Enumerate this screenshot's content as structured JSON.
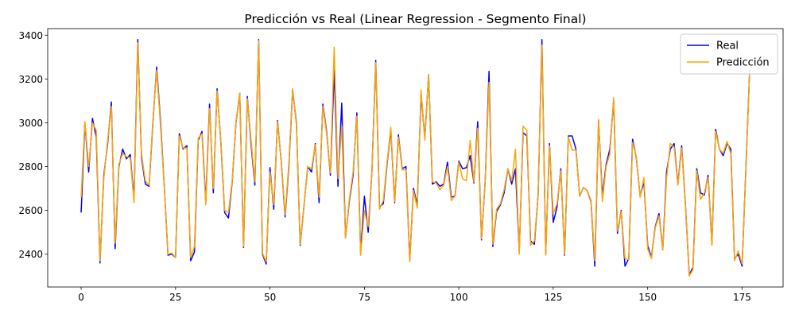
{
  "chart_data": {
    "type": "line",
    "title": "Predicción vs Real (Linear Regression - Segmento Final)",
    "xlabel": "",
    "ylabel": "",
    "xlim": [
      -8.85,
      185.85
    ],
    "ylim": [
      2250,
      3430
    ],
    "xticks": [
      0,
      25,
      50,
      75,
      100,
      125,
      150,
      175
    ],
    "yticks": [
      2400,
      2600,
      2800,
      3000,
      3200,
      3400
    ],
    "legend": "top-right",
    "grid": false,
    "series": [
      {
        "name": "Real",
        "color": "#0000ff",
        "values": [
          2590,
          3000,
          2775,
          3020,
          2935,
          2360,
          2760,
          2900,
          3095,
          2425,
          2800,
          2880,
          2835,
          2855,
          2650,
          3380,
          2840,
          2720,
          2710,
          3000,
          3255,
          3010,
          2715,
          2395,
          2400,
          2385,
          2950,
          2880,
          2895,
          2370,
          2410,
          2920,
          2960,
          2640,
          3085,
          2680,
          3155,
          2910,
          2590,
          2565,
          2730,
          3000,
          3135,
          2430,
          3120,
          2900,
          2715,
          3380,
          2400,
          2355,
          2795,
          2605,
          3010,
          2820,
          2570,
          2800,
          3150,
          3000,
          2440,
          2620,
          2800,
          2775,
          2905,
          2635,
          3085,
          2960,
          2760,
          3240,
          2710,
          3090,
          2475,
          2640,
          2760,
          3045,
          2405,
          2665,
          2500,
          2780,
          3285,
          2615,
          2630,
          2810,
          2970,
          2635,
          2945,
          2790,
          2800,
          2370,
          2700,
          2625,
          3130,
          2930,
          3220,
          2720,
          2730,
          2710,
          2720,
          2820,
          2660,
          2665,
          2825,
          2790,
          2795,
          2850,
          2725,
          3005,
          2465,
          2740,
          3235,
          2435,
          2595,
          2625,
          2680,
          2790,
          2720,
          2790,
          2410,
          2955,
          2940,
          2460,
          2445,
          2670,
          3380,
          2400,
          2905,
          2545,
          2615,
          2790,
          2395,
          2940,
          2940,
          2880,
          2665,
          2705,
          2690,
          2640,
          2345,
          3010,
          2665,
          2810,
          2880,
          3105,
          2495,
          2600,
          2345,
          2380,
          2925,
          2840,
          2665,
          2730,
          2440,
          2385,
          2525,
          2585,
          2420,
          2775,
          2880,
          2905,
          2720,
          2895,
          2625,
          2305,
          2340,
          2790,
          2680,
          2670,
          2760,
          2445,
          2970,
          2880,
          2850,
          2905,
          2880,
          2380,
          2400,
          2345,
          2790,
          3240
        ]
      },
      {
        "name": "Predicción",
        "color": "#ffa500",
        "values": [
          2660,
          3005,
          2800,
          3000,
          2965,
          2370,
          2745,
          2915,
          3075,
          2450,
          2810,
          2860,
          2845,
          2840,
          2635,
          3365,
          2855,
          2735,
          2715,
          3010,
          3240,
          2990,
          2710,
          2400,
          2405,
          2385,
          2940,
          2885,
          2885,
          2385,
          2435,
          2930,
          2950,
          2625,
          3065,
          2700,
          3145,
          2915,
          2600,
          2590,
          2735,
          3005,
          3135,
          2435,
          3110,
          2920,
          2730,
          3375,
          2405,
          2365,
          2775,
          2625,
          3005,
          2825,
          2580,
          2815,
          3155,
          2990,
          2445,
          2620,
          2800,
          2790,
          2900,
          2660,
          3075,
          2950,
          2770,
          3345,
          2745,
          2985,
          2475,
          2650,
          2775,
          3030,
          2395,
          2600,
          2525,
          2775,
          3275,
          2605,
          2645,
          2820,
          2980,
          2640,
          2935,
          2785,
          2785,
          2365,
          2690,
          2610,
          3150,
          2920,
          3220,
          2730,
          2725,
          2695,
          2715,
          2800,
          2645,
          2665,
          2820,
          2745,
          2735,
          2920,
          2730,
          2975,
          2470,
          2740,
          3185,
          2445,
          2605,
          2630,
          2695,
          2790,
          2735,
          2880,
          2400,
          2985,
          2965,
          2440,
          2460,
          2670,
          3355,
          2395,
          2895,
          2585,
          2630,
          2780,
          2400,
          2935,
          2875,
          2875,
          2665,
          2705,
          2690,
          2645,
          2370,
          3015,
          2640,
          2800,
          2860,
          3115,
          2505,
          2595,
          2380,
          2375,
          2910,
          2845,
          2660,
          2750,
          2425,
          2380,
          2520,
          2575,
          2420,
          2745,
          2905,
          2890,
          2715,
          2885,
          2620,
          2300,
          2330,
          2780,
          2650,
          2680,
          2750,
          2440,
          2960,
          2880,
          2860,
          2915,
          2860,
          2370,
          2415,
          2355,
          2780,
          3235
        ]
      }
    ]
  }
}
